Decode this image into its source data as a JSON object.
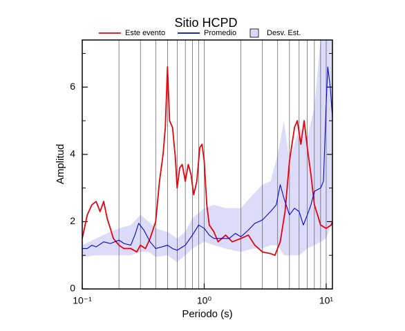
{
  "chart_data": {
    "type": "line",
    "title": "Sitio HCPD",
    "x_label": "Periodo (s)",
    "y_label": "Amplitud",
    "xscale": "log",
    "xlim": [
      0.1,
      11.25
    ],
    "ylim": [
      0,
      7.4
    ],
    "xticks": [
      {
        "value": 0.1,
        "label": "10⁻¹"
      },
      {
        "value": 1,
        "label": "10⁰"
      },
      {
        "value": 10,
        "label": "10¹"
      }
    ],
    "xgrid": [
      0.2,
      0.3,
      0.4,
      0.5,
      0.6,
      0.7,
      0.8,
      0.9,
      1,
      2,
      3,
      4,
      5,
      6,
      7,
      8,
      9,
      10
    ],
    "yticks": [
      0,
      2,
      4,
      6
    ],
    "yminor": [
      1,
      3,
      5,
      7
    ],
    "series": [
      {
        "name": "Este evento",
        "color": "#e8000b",
        "x": [
          0.1,
          0.11,
          0.12,
          0.13,
          0.14,
          0.15,
          0.16,
          0.17,
          0.18,
          0.2,
          0.22,
          0.25,
          0.28,
          0.3,
          0.33,
          0.36,
          0.4,
          0.43,
          0.46,
          0.48,
          0.5,
          0.52,
          0.55,
          0.58,
          0.6,
          0.63,
          0.66,
          0.7,
          0.74,
          0.78,
          0.82,
          0.87,
          0.92,
          0.96,
          1.0,
          1.05,
          1.1,
          1.2,
          1.3,
          1.5,
          1.7,
          2.0,
          2.3,
          2.6,
          3.0,
          3.5,
          3.8,
          4.2,
          4.6,
          5.0,
          5.5,
          5.8,
          6.2,
          6.6,
          7.0,
          7.5,
          8.0,
          8.5,
          9.0,
          10.0,
          11.0,
          11.25
        ],
        "values": [
          1.5,
          2.2,
          2.5,
          2.6,
          2.3,
          2.6,
          2.1,
          1.8,
          1.5,
          1.3,
          1.2,
          1.2,
          1.1,
          1.3,
          1.2,
          1.5,
          2.0,
          3.2,
          4.0,
          4.8,
          6.6,
          5.0,
          4.8,
          3.9,
          3.0,
          3.6,
          3.7,
          3.2,
          3.7,
          3.4,
          2.8,
          3.2,
          4.2,
          4.3,
          3.8,
          2.5,
          1.9,
          1.7,
          1.4,
          1.6,
          1.4,
          1.5,
          1.6,
          1.3,
          1.1,
          1.05,
          1.0,
          1.4,
          2.3,
          3.8,
          4.8,
          5.0,
          4.3,
          5.0,
          4.2,
          3.4,
          2.5,
          2.2,
          1.9,
          1.8,
          1.9,
          2.0
        ]
      },
      {
        "name": "Promedio",
        "color": "#0000dd",
        "x": [
          0.1,
          0.11,
          0.12,
          0.13,
          0.15,
          0.17,
          0.2,
          0.22,
          0.25,
          0.27,
          0.29,
          0.32,
          0.36,
          0.4,
          0.45,
          0.5,
          0.55,
          0.6,
          0.7,
          0.8,
          0.9,
          1.0,
          1.1,
          1.2,
          1.4,
          1.6,
          1.8,
          2.0,
          2.3,
          2.6,
          3.0,
          3.5,
          3.9,
          4.2,
          4.5,
          5.0,
          5.5,
          6.0,
          6.5,
          7.0,
          7.5,
          8.0,
          9.0,
          9.5,
          10.0,
          10.3,
          10.8,
          11.25
        ],
        "values": [
          1.2,
          1.2,
          1.3,
          1.25,
          1.4,
          1.35,
          1.45,
          1.35,
          1.3,
          1.6,
          1.95,
          1.75,
          1.4,
          1.2,
          1.25,
          1.3,
          1.2,
          1.15,
          1.3,
          1.6,
          1.9,
          1.8,
          1.6,
          1.5,
          1.5,
          1.5,
          1.65,
          1.55,
          1.75,
          1.95,
          2.05,
          2.3,
          2.5,
          3.1,
          2.7,
          2.2,
          2.4,
          2.3,
          1.9,
          2.2,
          2.5,
          2.9,
          3.0,
          3.2,
          5.5,
          6.6,
          6.0,
          5.1
        ]
      },
      {
        "name": "Desv. Est.",
        "color": "#dcdcfa",
        "x": [
          0.1,
          0.13,
          0.17,
          0.2,
          0.25,
          0.3,
          0.35,
          0.4,
          0.5,
          0.6,
          0.7,
          0.8,
          1.0,
          1.2,
          1.5,
          2,
          2.5,
          3,
          3.5,
          4,
          4.5,
          5,
          6,
          7,
          8,
          9,
          10,
          11.25
        ],
        "lower": [
          0.95,
          1.0,
          1.0,
          1.0,
          1.0,
          1.1,
          1.1,
          0.95,
          1.0,
          0.8,
          1.0,
          1.2,
          1.4,
          1.3,
          1.2,
          1.1,
          1.2,
          1.2,
          1.3,
          1.3,
          1.0,
          1.0,
          1.0,
          1.2,
          1.3,
          1.4,
          1.5,
          2.0
        ],
        "upper": [
          1.3,
          1.5,
          1.7,
          1.8,
          1.9,
          2.2,
          2.0,
          1.8,
          1.7,
          1.5,
          1.7,
          2.1,
          2.4,
          2.5,
          2.4,
          2.4,
          2.8,
          3.1,
          3.2,
          4.0,
          5.0,
          3.8,
          4.8,
          4.5,
          5.4,
          7.4,
          7.4,
          7.4
        ]
      }
    ]
  }
}
